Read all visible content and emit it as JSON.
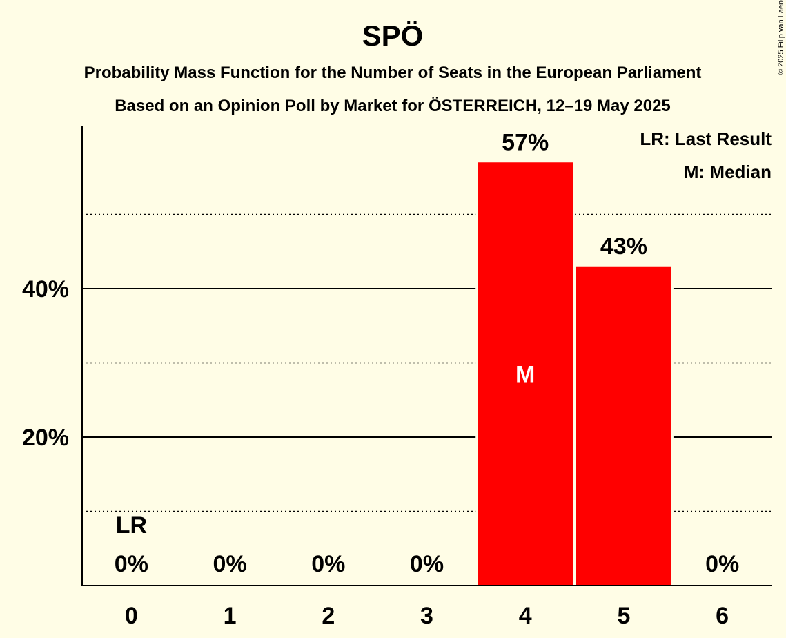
{
  "chart_data": {
    "type": "bar",
    "title": "SPÖ",
    "subtitle_lines": [
      "Probability Mass Function for the Number of Seats in the European Parliament",
      "Based on an Opinion Poll by Market for ÖSTERREICH, 12–19 May 2025"
    ],
    "categories": [
      "0",
      "1",
      "2",
      "3",
      "4",
      "5",
      "6"
    ],
    "values": [
      0,
      0,
      0,
      0,
      57,
      43,
      0
    ],
    "value_labels": [
      "0%",
      "0%",
      "0%",
      "0%",
      "57%",
      "43%",
      "0%"
    ],
    "ylim": [
      0,
      62
    ],
    "yticks": [
      {
        "value": 20,
        "label": "20%"
      },
      {
        "value": 40,
        "label": "40%"
      }
    ],
    "minor_gridlines": [
      10,
      30,
      50
    ],
    "last_result": {
      "category": "0",
      "label": "LR"
    },
    "median": {
      "category": "4",
      "label": "M"
    },
    "legend": [
      "LR: Last Result",
      "M: Median"
    ],
    "legend_position": "top-right",
    "bar_color": "#ff0000",
    "background_color": "#fffde6",
    "copyright": "© 2025 Filip van Laenen"
  }
}
